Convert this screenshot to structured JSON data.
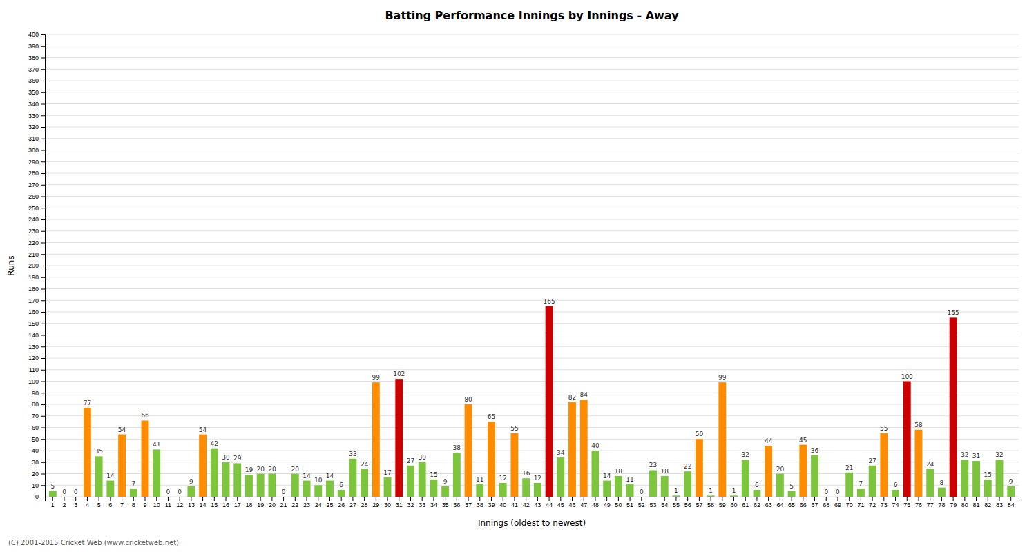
{
  "chart_data": {
    "type": "bar",
    "title": "Batting Performance Innings by Innings - Away",
    "x_label": "Innings (oldest to newest)",
    "y_label": "Runs",
    "categories": [
      "1",
      "2",
      "3",
      "4",
      "5",
      "6",
      "7",
      "8",
      "9",
      "10",
      "11",
      "12",
      "13",
      "14",
      "15",
      "16",
      "17",
      "18",
      "19",
      "20",
      "21",
      "22",
      "23",
      "24",
      "25",
      "26",
      "27",
      "28",
      "29",
      "30",
      "31",
      "32",
      "33",
      "34",
      "35",
      "36",
      "37",
      "38",
      "39",
      "40",
      "41",
      "42",
      "43",
      "44",
      "45",
      "46",
      "47",
      "48",
      "49",
      "50",
      "51",
      "52",
      "53",
      "54",
      "55",
      "56",
      "57",
      "58",
      "59",
      "60",
      "61",
      "62",
      "63",
      "64",
      "65",
      "66",
      "67",
      "68",
      "69",
      "70",
      "71",
      "72",
      "73",
      "74",
      "75",
      "76",
      "77",
      "78",
      "79",
      "80",
      "81",
      "82",
      "83",
      "84"
    ],
    "values": [
      5,
      0,
      0,
      77,
      35,
      14,
      54,
      7,
      66,
      41,
      0,
      0,
      9,
      54,
      42,
      30,
      29,
      19,
      20,
      20,
      0,
      20,
      14,
      10,
      14,
      6,
      33,
      24,
      99,
      17,
      102,
      27,
      30,
      15,
      9,
      38,
      80,
      11,
      65,
      12,
      55,
      16,
      12,
      165,
      34,
      82,
      84,
      40,
      14,
      18,
      11,
      0,
      23,
      18,
      1,
      22,
      50,
      1,
      99,
      1,
      32,
      6,
      44,
      20,
      5,
      45,
      36,
      0,
      0,
      21,
      7,
      27,
      55,
      6,
      100,
      58,
      24,
      8,
      155,
      32,
      31,
      15,
      32,
      9
    ],
    "colors": [
      "#7dc53c",
      "#7dc53c",
      "#7dc53c",
      "#ff8c00",
      "#7dc53c",
      "#7dc53c",
      "#ff8c00",
      "#7dc53c",
      "#ff8c00",
      "#7dc53c",
      "#7dc53c",
      "#7dc53c",
      "#7dc53c",
      "#ff8c00",
      "#7dc53c",
      "#7dc53c",
      "#7dc53c",
      "#7dc53c",
      "#7dc53c",
      "#7dc53c",
      "#7dc53c",
      "#7dc53c",
      "#7dc53c",
      "#7dc53c",
      "#7dc53c",
      "#7dc53c",
      "#7dc53c",
      "#7dc53c",
      "#ff8c00",
      "#7dc53c",
      "#cc0000",
      "#7dc53c",
      "#7dc53c",
      "#7dc53c",
      "#7dc53c",
      "#7dc53c",
      "#ff8c00",
      "#7dc53c",
      "#ff8c00",
      "#7dc53c",
      "#ff8c00",
      "#7dc53c",
      "#7dc53c",
      "#cc0000",
      "#7dc53c",
      "#ff8c00",
      "#ff8c00",
      "#7dc53c",
      "#7dc53c",
      "#7dc53c",
      "#7dc53c",
      "#7dc53c",
      "#7dc53c",
      "#7dc53c",
      "#7dc53c",
      "#7dc53c",
      "#ff8c00",
      "#7dc53c",
      "#ff8c00",
      "#7dc53c",
      "#7dc53c",
      "#7dc53c",
      "#ff8c00",
      "#7dc53c",
      "#7dc53c",
      "#ff8c00",
      "#7dc53c",
      "#7dc53c",
      "#7dc53c",
      "#7dc53c",
      "#7dc53c",
      "#7dc53c",
      "#ff8c00",
      "#7dc53c",
      "#cc0000",
      "#ff8c00",
      "#7dc53c",
      "#7dc53c",
      "#cc0000",
      "#7dc53c",
      "#7dc53c",
      "#7dc53c",
      "#7dc53c",
      "#7dc53c"
    ],
    "ylim": [
      0,
      400
    ],
    "yticks": [
      0,
      10,
      20,
      30,
      40,
      50,
      60,
      70,
      80,
      90,
      100,
      110,
      120,
      130,
      140,
      150,
      160,
      170,
      180,
      190,
      200,
      210,
      220,
      230,
      240,
      250,
      260,
      270,
      280,
      290,
      300,
      310,
      320,
      330,
      340,
      350,
      360,
      370,
      380,
      390,
      400
    ],
    "grid": true,
    "data_labels": true,
    "annotations": [
      "(C) 2001-2015 Cricket Web (www.cricketweb.net)"
    ]
  }
}
